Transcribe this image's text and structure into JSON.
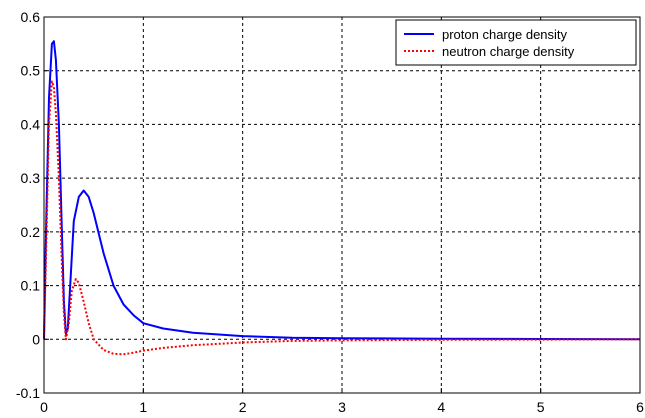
{
  "chart_data": {
    "type": "line",
    "xlim": [
      0,
      6
    ],
    "ylim": [
      -0.1,
      0.6
    ],
    "x_ticks": [
      "0",
      "1",
      "2",
      "3",
      "4",
      "5",
      "6"
    ],
    "y_ticks": [
      "-0.1",
      "0",
      "0.1",
      "0.2",
      "0.3",
      "0.4",
      "0.5",
      "0.6"
    ],
    "grid": true,
    "legend_position": "top-right",
    "series": [
      {
        "name": "proton charge density",
        "color": "#0000ff",
        "line_style": "solid",
        "x": [
          0,
          0.02,
          0.05,
          0.08,
          0.1,
          0.12,
          0.15,
          0.18,
          0.2,
          0.22,
          0.24,
          0.27,
          0.3,
          0.35,
          0.4,
          0.45,
          0.5,
          0.6,
          0.7,
          0.8,
          0.9,
          1.0,
          1.2,
          1.5,
          2.0,
          2.5,
          3.0,
          4.0,
          5.0,
          6.0
        ],
        "y": [
          0,
          0.2,
          0.45,
          0.55,
          0.555,
          0.52,
          0.4,
          0.2,
          0.07,
          0.01,
          0.02,
          0.12,
          0.22,
          0.265,
          0.277,
          0.265,
          0.235,
          0.16,
          0.1,
          0.065,
          0.045,
          0.03,
          0.02,
          0.012,
          0.006,
          0.003,
          0.002,
          0.001,
          0.0005,
          0
        ]
      },
      {
        "name": "neutron charge density",
        "color": "#ff0000",
        "line_style": "dotted",
        "x": [
          0,
          0.02,
          0.05,
          0.08,
          0.1,
          0.12,
          0.15,
          0.18,
          0.2,
          0.22,
          0.25,
          0.28,
          0.32,
          0.35,
          0.4,
          0.45,
          0.5,
          0.6,
          0.7,
          0.8,
          0.9,
          1.0,
          1.2,
          1.5,
          2.0,
          2.5,
          3.0,
          4.0,
          5.0,
          6.0
        ],
        "y": [
          0,
          0.15,
          0.4,
          0.48,
          0.47,
          0.42,
          0.3,
          0.14,
          0.05,
          0.0,
          0.03,
          0.09,
          0.112,
          0.105,
          0.07,
          0.03,
          0.0,
          -0.02,
          -0.027,
          -0.028,
          -0.025,
          -0.021,
          -0.016,
          -0.011,
          -0.006,
          -0.003,
          -0.002,
          -0.001,
          -0.0005,
          0
        ]
      }
    ]
  }
}
